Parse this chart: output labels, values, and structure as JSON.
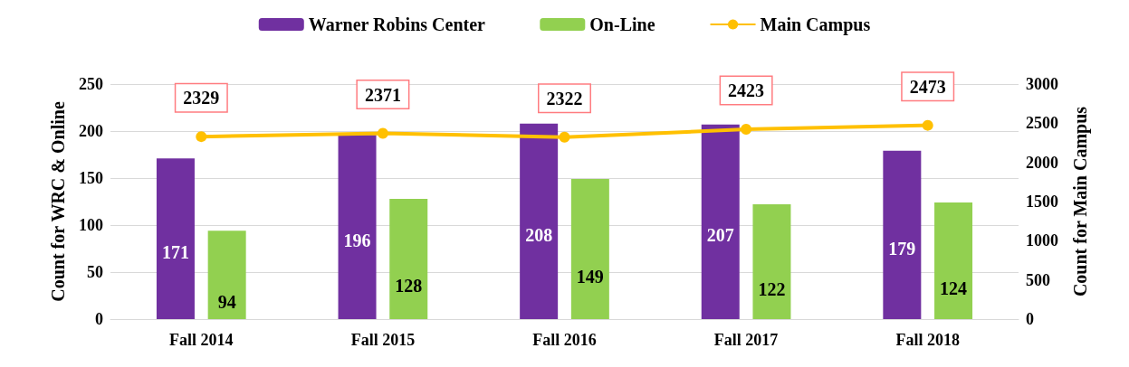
{
  "chart_data": {
    "type": "bar",
    "categories": [
      "Fall 2014",
      "Fall 2015",
      "Fall 2016",
      "Fall 2017",
      "Fall 2018"
    ],
    "series": [
      {
        "name": "Warner Robins Center",
        "color": "#7030a0",
        "values": [
          171,
          196,
          208,
          207,
          179
        ]
      },
      {
        "name": "On-Line",
        "color": "#92d050",
        "values": [
          94,
          128,
          149,
          122,
          124
        ]
      },
      {
        "name": "Main Campus",
        "type": "line",
        "axis": "y2",
        "color": "#ffc000",
        "values": [
          2329,
          2371,
          2322,
          2423,
          2473
        ]
      }
    ],
    "ylabel": "Count for WRC & Online",
    "y2label": "Count for Main Campus",
    "ylim": [
      0,
      250
    ],
    "yticks": [
      0,
      50,
      100,
      150,
      200,
      250
    ],
    "y2lim": [
      0,
      3000
    ],
    "y2ticks": [
      0,
      500,
      1000,
      1500,
      2000,
      2500,
      3000
    ],
    "grid": "y",
    "legend": "top",
    "marker": "circle",
    "data_labels": true
  }
}
